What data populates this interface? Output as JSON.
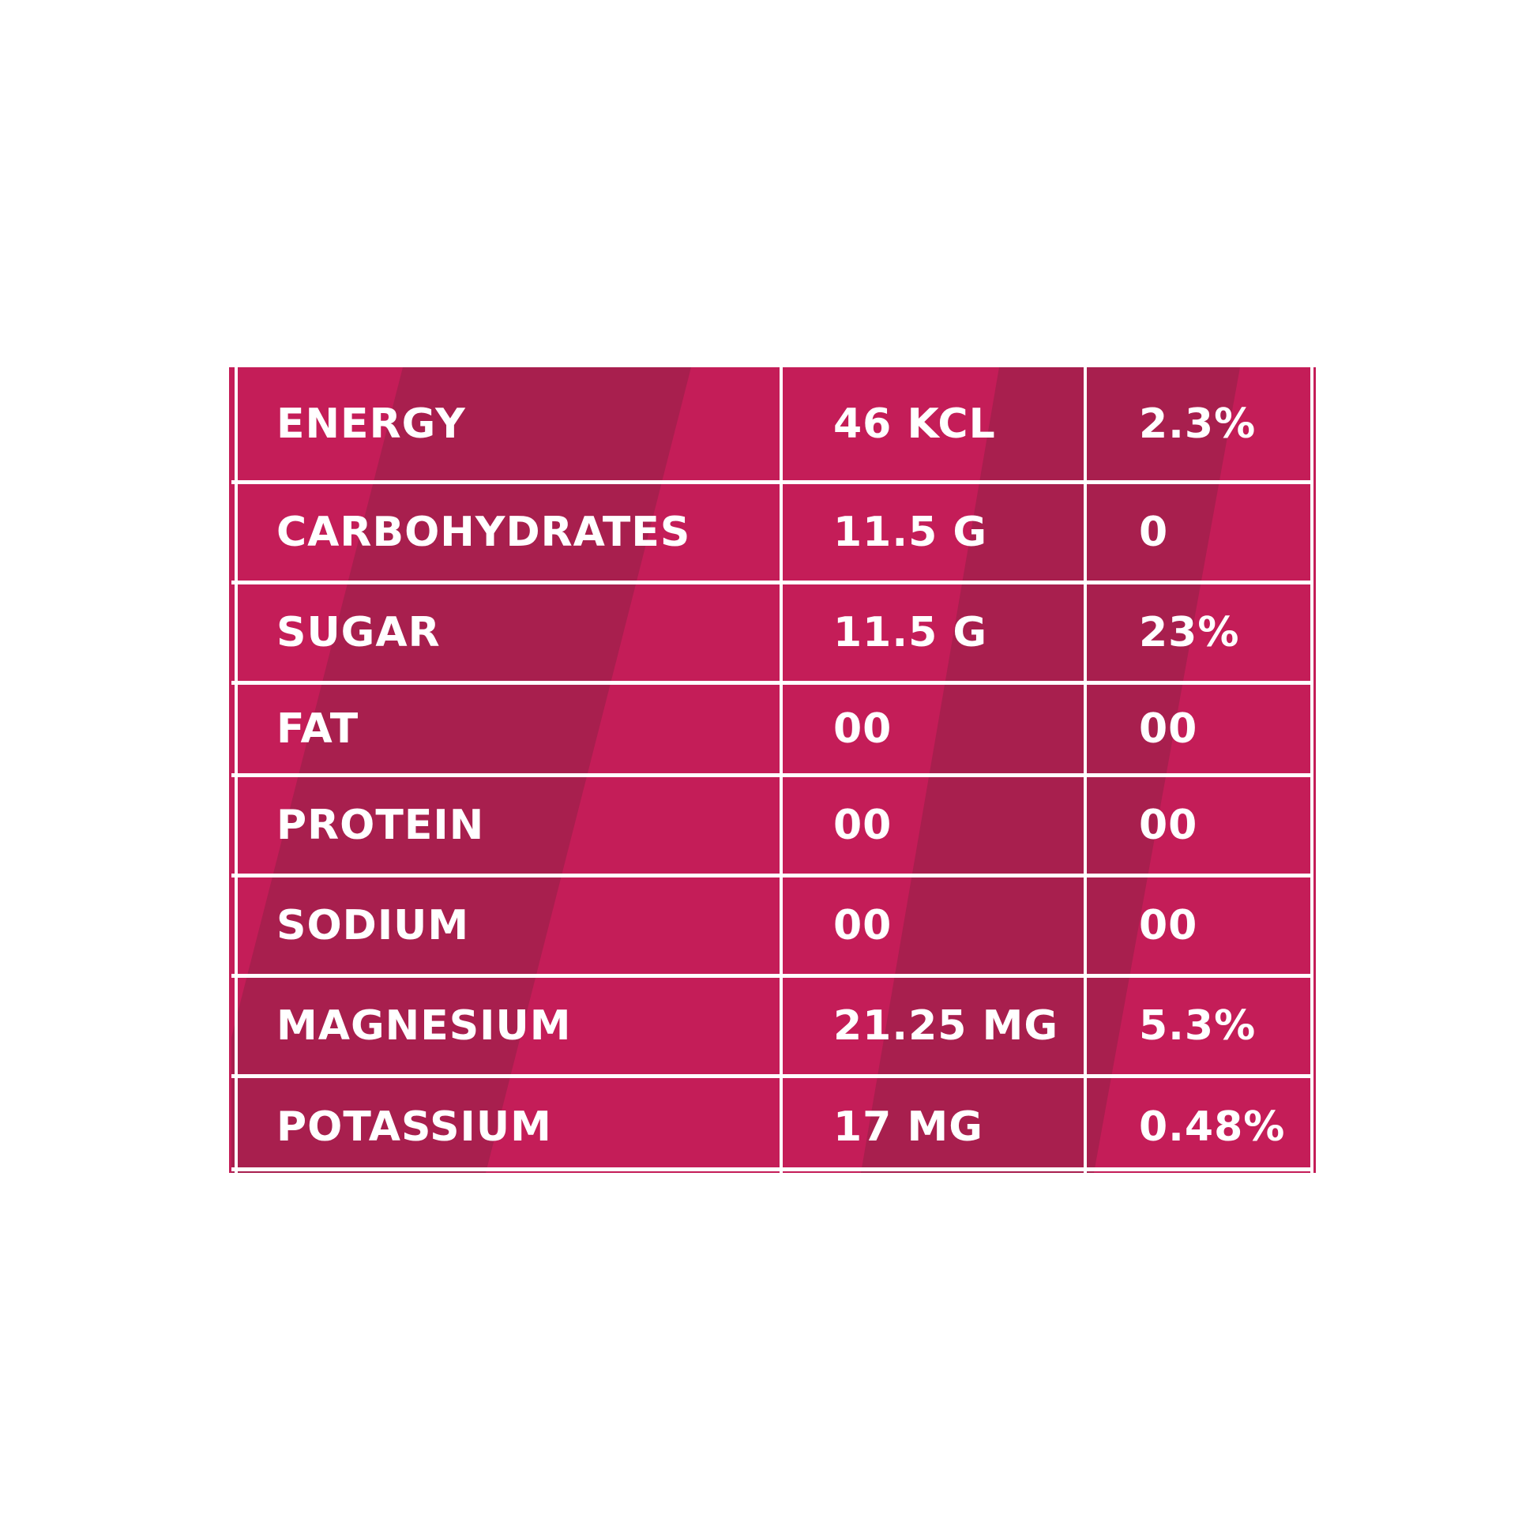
{
  "table": {
    "rows": [
      {
        "name": "ENERGY",
        "amount": "46 KCL",
        "percent": "2.3%"
      },
      {
        "name": "CARBOHYDRATES",
        "amount": "11.5 G",
        "percent": "0"
      },
      {
        "name": "SUGAR",
        "amount": "11.5 G",
        "percent": "23%"
      },
      {
        "name": "FAT",
        "amount": "00",
        "percent": "00"
      },
      {
        "name": "PROTEIN",
        "amount": "00",
        "percent": "00"
      },
      {
        "name": "SODIUM",
        "amount": "00",
        "percent": "00"
      },
      {
        "name": "MAGNESIUM",
        "amount": "21.25 MG",
        "percent": "5.3%"
      },
      {
        "name": "POTASSIUM",
        "amount": "17 MG",
        "percent": "0.48%"
      }
    ]
  },
  "colors": {
    "panel": "#c41d58",
    "stripe": "#a81f4e",
    "text": "#ffffff",
    "grid_lines": "#ffffff",
    "background": "#ffffff"
  }
}
